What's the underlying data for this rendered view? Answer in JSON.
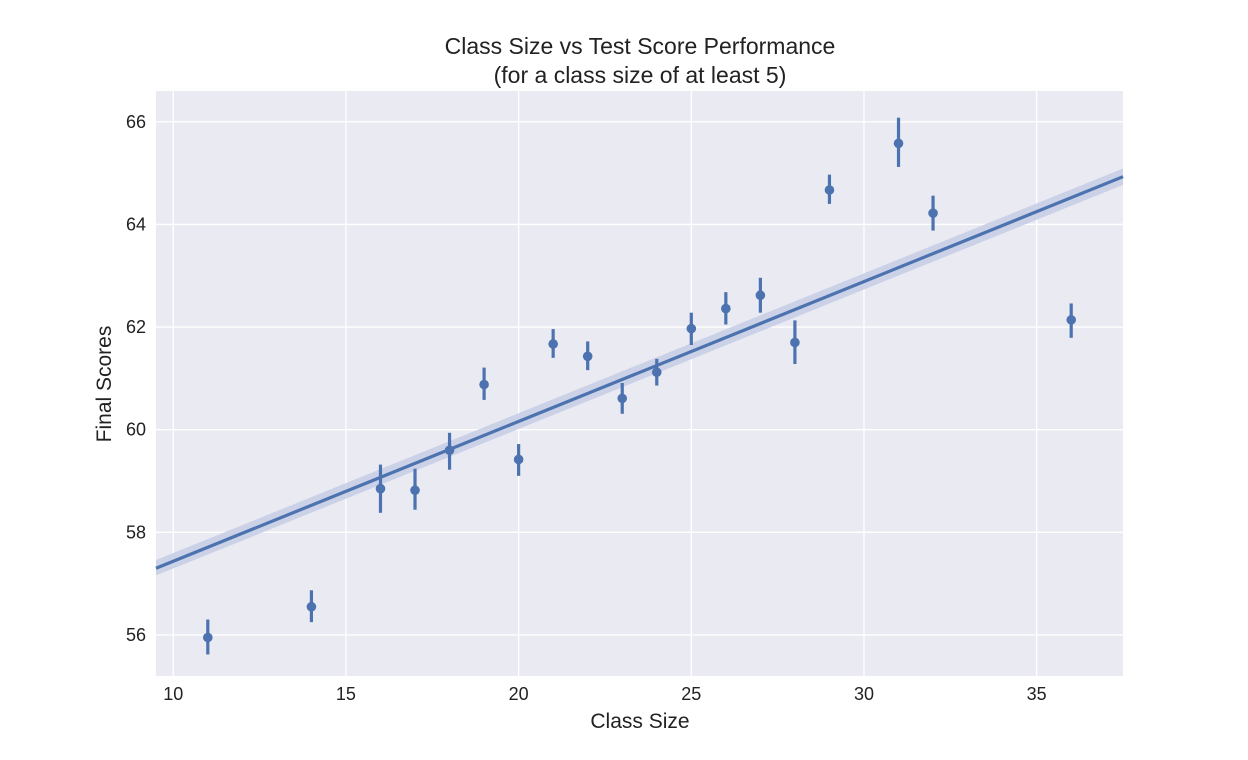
{
  "chart_data": {
    "type": "scatter",
    "title": "Class Size vs Test Score Performance",
    "subtitle": "(for a class size of at least 5)",
    "xlabel": "Class Size",
    "ylabel": "Final Scores",
    "xlim": [
      9.5,
      37.5
    ],
    "ylim": [
      55.2,
      66.6
    ],
    "xticks": [
      10,
      15,
      20,
      25,
      30,
      35
    ],
    "yticks": [
      56,
      58,
      60,
      62,
      64,
      66
    ],
    "grid": true,
    "colors": {
      "background": "#eaeaf2",
      "grid": "#ffffff",
      "series": "#4c72b0",
      "band": "#c6cde4"
    },
    "points": [
      {
        "x": 11,
        "y": 55.95,
        "err_low": 55.62,
        "err_high": 56.3
      },
      {
        "x": 14,
        "y": 56.55,
        "err_low": 56.25,
        "err_high": 56.87
      },
      {
        "x": 16,
        "y": 58.85,
        "err_low": 58.38,
        "err_high": 59.32
      },
      {
        "x": 17,
        "y": 58.82,
        "err_low": 58.44,
        "err_high": 59.24
      },
      {
        "x": 18,
        "y": 59.6,
        "err_low": 59.22,
        "err_high": 59.94
      },
      {
        "x": 19,
        "y": 60.88,
        "err_low": 60.58,
        "err_high": 61.21
      },
      {
        "x": 20,
        "y": 59.42,
        "err_low": 59.1,
        "err_high": 59.72
      },
      {
        "x": 21,
        "y": 61.67,
        "err_low": 61.4,
        "err_high": 61.96
      },
      {
        "x": 22,
        "y": 61.43,
        "err_low": 61.16,
        "err_high": 61.72
      },
      {
        "x": 23,
        "y": 60.61,
        "err_low": 60.31,
        "err_high": 60.91
      },
      {
        "x": 24,
        "y": 61.12,
        "err_low": 60.86,
        "err_high": 61.38
      },
      {
        "x": 25,
        "y": 61.97,
        "err_low": 61.65,
        "err_high": 62.28
      },
      {
        "x": 26,
        "y": 62.36,
        "err_low": 62.05,
        "err_high": 62.68
      },
      {
        "x": 27,
        "y": 62.62,
        "err_low": 62.28,
        "err_high": 62.96
      },
      {
        "x": 28,
        "y": 61.7,
        "err_low": 61.28,
        "err_high": 62.13
      },
      {
        "x": 29,
        "y": 64.67,
        "err_low": 64.4,
        "err_high": 64.97
      },
      {
        "x": 31,
        "y": 65.58,
        "err_low": 65.12,
        "err_high": 66.08
      },
      {
        "x": 32,
        "y": 64.22,
        "err_low": 63.88,
        "err_high": 64.56
      },
      {
        "x": 36,
        "y": 62.14,
        "err_low": 61.79,
        "err_high": 62.46
      }
    ],
    "regression": {
      "x": [
        9.5,
        37.5
      ],
      "y": [
        57.3,
        64.93
      ],
      "band_low": [
        57.16,
        64.77
      ],
      "band_high": [
        57.46,
        65.09
      ]
    }
  }
}
